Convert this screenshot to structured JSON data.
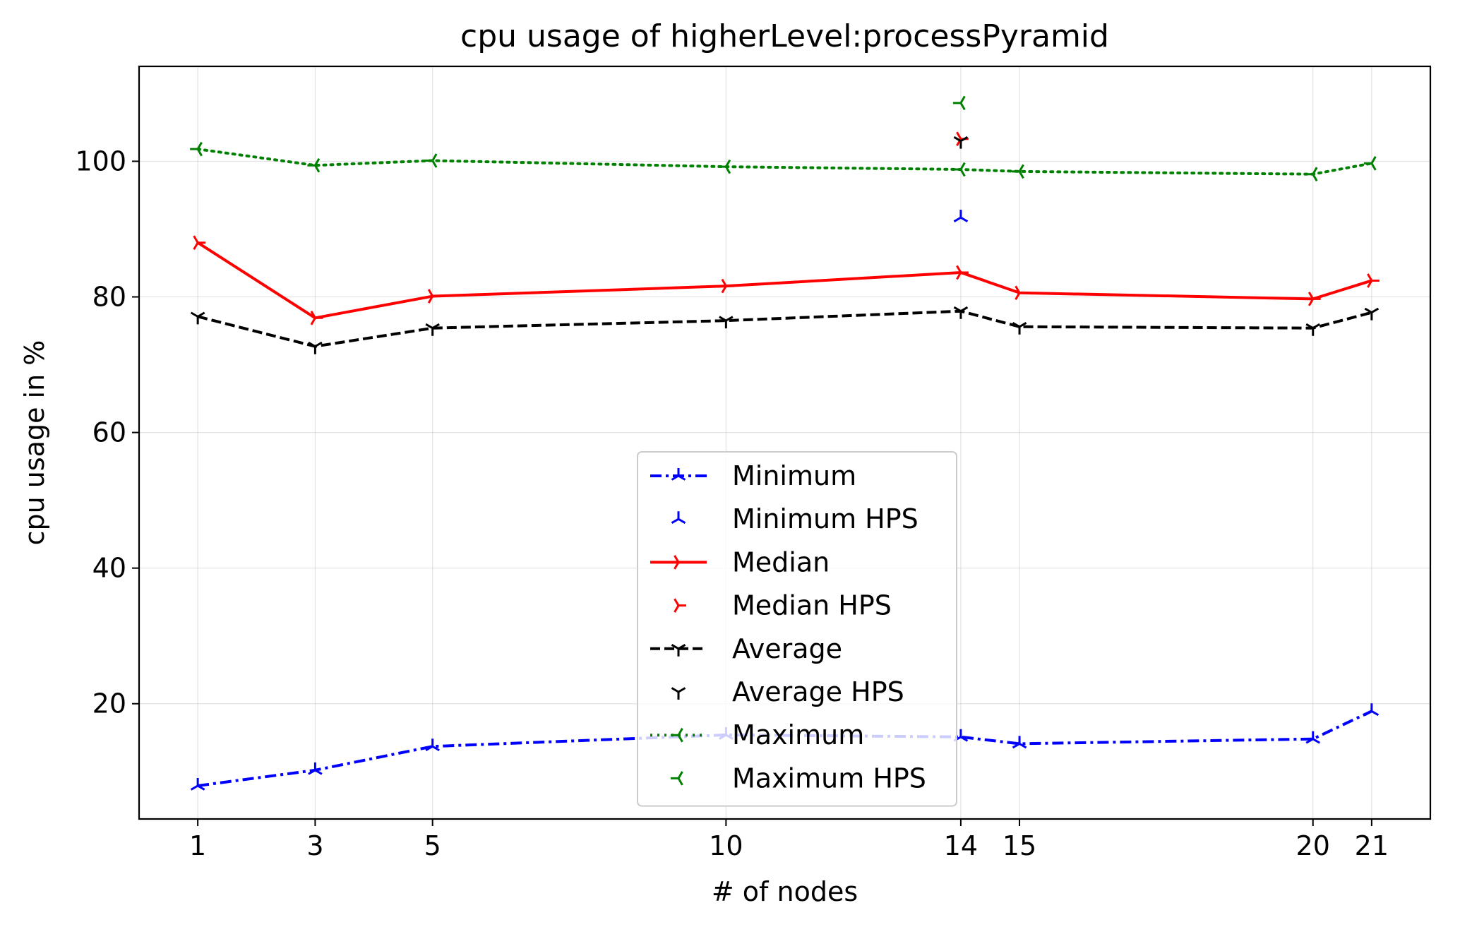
{
  "chart_data": {
    "type": "line",
    "title": "cpu usage of higherLevel:processPyramid",
    "xlabel": "# of nodes",
    "ylabel": "cpu usage in %",
    "x_ticks": [
      1,
      3,
      5,
      10,
      14,
      15,
      20,
      21
    ],
    "y_ticks": [
      20,
      40,
      60,
      80,
      100
    ],
    "xlim": [
      0,
      22
    ],
    "ylim": [
      3,
      114
    ],
    "grid": true,
    "legend_position": "center",
    "series": [
      {
        "name": "Minimum",
        "color": "#0000ff",
        "style": "dashdot",
        "marker": "tri-up",
        "x": [
          1,
          3,
          5,
          10,
          14,
          15,
          20,
          21
        ],
        "y": [
          7.9,
          10.2,
          13.7,
          15.4,
          15.1,
          14.1,
          14.8,
          18.9
        ]
      },
      {
        "name": "Minimum HPS",
        "color": "#0000ff",
        "style": "none",
        "marker": "tri-up",
        "x": [
          14
        ],
        "y": [
          91.7
        ]
      },
      {
        "name": "Median",
        "color": "#ff0000",
        "style": "solid",
        "marker": "tri-right",
        "x": [
          1,
          3,
          5,
          10,
          14,
          15,
          20,
          21
        ],
        "y": [
          88.0,
          76.9,
          80.1,
          81.6,
          83.6,
          80.6,
          79.7,
          82.4
        ]
      },
      {
        "name": "Median HPS",
        "color": "#ff0000",
        "style": "none",
        "marker": "tri-right",
        "x": [
          14
        ],
        "y": [
          103.3
        ]
      },
      {
        "name": "Average",
        "color": "#000000",
        "style": "dashed",
        "marker": "tri-down",
        "x": [
          1,
          3,
          5,
          10,
          14,
          15,
          20,
          21
        ],
        "y": [
          77.1,
          72.7,
          75.4,
          76.5,
          77.9,
          75.6,
          75.4,
          77.7
        ]
      },
      {
        "name": "Average HPS",
        "color": "#000000",
        "style": "none",
        "marker": "tri-down",
        "x": [
          14
        ],
        "y": [
          103.0
        ]
      },
      {
        "name": "Maximum",
        "color": "#008000",
        "style": "dotted",
        "marker": "tri-left",
        "x": [
          1,
          3,
          5,
          10,
          14,
          15,
          20,
          21
        ],
        "y": [
          101.8,
          99.4,
          100.1,
          99.2,
          98.8,
          98.5,
          98.1,
          99.7
        ]
      },
      {
        "name": "Maximum HPS",
        "color": "#008000",
        "style": "none",
        "marker": "tri-left",
        "x": [
          14
        ],
        "y": [
          108.6
        ]
      }
    ]
  }
}
